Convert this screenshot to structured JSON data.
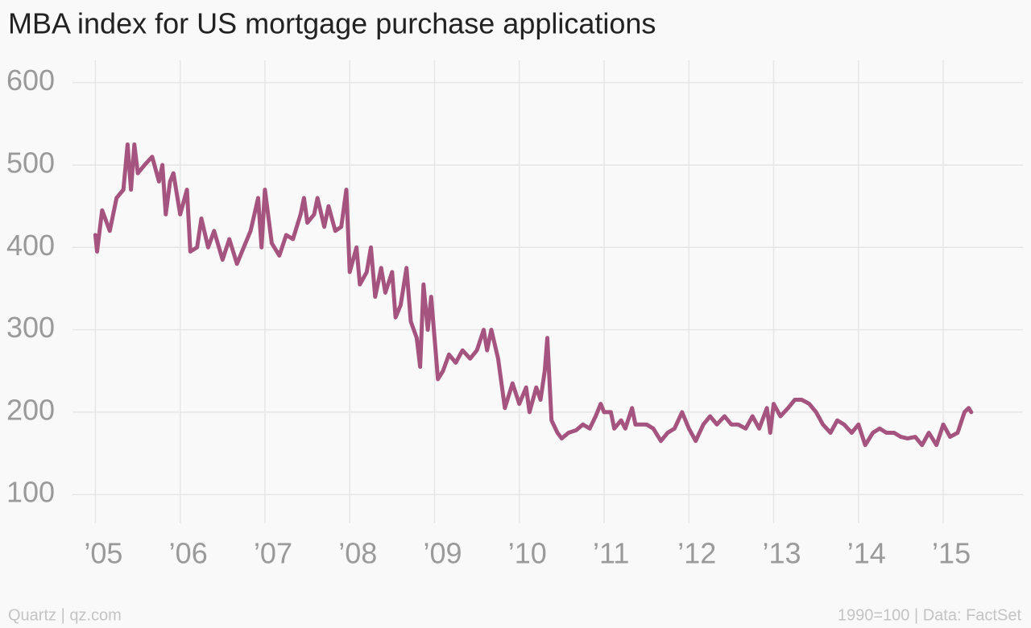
{
  "chart_data": {
    "type": "line",
    "title": "MBA index for US mortgage purchase applications",
    "source": "Quartz | qz.com",
    "note": "1990=100 | Data: FactSet",
    "color": "#a5547f",
    "grid": true,
    "xlim": [
      2004.73,
      2015.94
    ],
    "ylim": [
      65,
      627
    ],
    "xticks": [
      {
        "value": 2005,
        "label": "’05"
      },
      {
        "value": 2006,
        "label": "’06"
      },
      {
        "value": 2007,
        "label": "’07"
      },
      {
        "value": 2008,
        "label": "’08"
      },
      {
        "value": 2009,
        "label": "’09"
      },
      {
        "value": 2010,
        "label": "’10"
      },
      {
        "value": 2011,
        "label": "’11"
      },
      {
        "value": 2012,
        "label": "’12"
      },
      {
        "value": 2013,
        "label": "’13"
      },
      {
        "value": 2014,
        "label": "’14"
      },
      {
        "value": 2015,
        "label": "’15"
      }
    ],
    "yticks": [
      100,
      200,
      300,
      400,
      500,
      600
    ],
    "x": [
      2005.0,
      2005.02,
      2005.08,
      2005.17,
      2005.25,
      2005.33,
      2005.38,
      2005.42,
      2005.46,
      2005.5,
      2005.58,
      2005.67,
      2005.75,
      2005.79,
      2005.83,
      2005.88,
      2005.92,
      2006.0,
      2006.08,
      2006.12,
      2006.2,
      2006.25,
      2006.33,
      2006.4,
      2006.5,
      2006.58,
      2006.67,
      2006.75,
      2006.83,
      2006.92,
      2006.96,
      2007.0,
      2007.08,
      2007.17,
      2007.25,
      2007.33,
      2007.42,
      2007.46,
      2007.5,
      2007.58,
      2007.62,
      2007.7,
      2007.75,
      2007.83,
      2007.9,
      2007.96,
      2008.0,
      2008.08,
      2008.12,
      2008.2,
      2008.25,
      2008.3,
      2008.37,
      2008.42,
      2008.5,
      2008.54,
      2008.6,
      2008.67,
      2008.72,
      2008.79,
      2008.83,
      2008.87,
      2008.92,
      2008.96,
      2009.0,
      2009.04,
      2009.1,
      2009.17,
      2009.25,
      2009.33,
      2009.42,
      2009.5,
      2009.58,
      2009.62,
      2009.67,
      2009.75,
      2009.83,
      2009.92,
      2010.0,
      2010.08,
      2010.12,
      2010.2,
      2010.25,
      2010.3,
      2010.33,
      2010.38,
      2010.45,
      2010.5,
      2010.58,
      2010.67,
      2010.75,
      2010.83,
      2010.9,
      2010.96,
      2011.0,
      2011.08,
      2011.12,
      2011.2,
      2011.25,
      2011.33,
      2011.37,
      2011.5,
      2011.58,
      2011.67,
      2011.75,
      2011.83,
      2011.92,
      2012.0,
      2012.08,
      2012.17,
      2012.25,
      2012.33,
      2012.42,
      2012.5,
      2012.58,
      2012.67,
      2012.75,
      2012.83,
      2012.92,
      2012.96,
      2013.0,
      2013.08,
      2013.17,
      2013.25,
      2013.33,
      2013.42,
      2013.5,
      2013.58,
      2013.67,
      2013.75,
      2013.83,
      2013.92,
      2014.0,
      2014.08,
      2014.17,
      2014.25,
      2014.33,
      2014.42,
      2014.5,
      2014.58,
      2014.67,
      2014.75,
      2014.83,
      2014.92,
      2015.0,
      2015.08,
      2015.17,
      2015.25,
      2015.3,
      2015.33
    ],
    "values": [
      415,
      395,
      445,
      420,
      460,
      470,
      525,
      470,
      525,
      490,
      500,
      510,
      480,
      500,
      440,
      480,
      490,
      440,
      470,
      395,
      400,
      435,
      400,
      420,
      385,
      410,
      380,
      400,
      420,
      460,
      400,
      470,
      405,
      390,
      415,
      410,
      440,
      460,
      430,
      440,
      460,
      425,
      450,
      420,
      425,
      470,
      370,
      400,
      355,
      370,
      400,
      340,
      375,
      345,
      370,
      315,
      330,
      375,
      310,
      290,
      255,
      355,
      300,
      340,
      290,
      240,
      250,
      270,
      260,
      275,
      265,
      275,
      300,
      275,
      300,
      265,
      205,
      235,
      210,
      230,
      200,
      230,
      215,
      250,
      290,
      190,
      175,
      168,
      175,
      178,
      185,
      180,
      195,
      210,
      200,
      200,
      180,
      190,
      180,
      205,
      185,
      185,
      180,
      165,
      175,
      180,
      200,
      180,
      165,
      185,
      195,
      185,
      195,
      185,
      185,
      180,
      195,
      180,
      205,
      175,
      210,
      195,
      205,
      215,
      215,
      210,
      200,
      185,
      175,
      190,
      185,
      175,
      185,
      160,
      175,
      180,
      175,
      175,
      170,
      168,
      170,
      160,
      175,
      160,
      185,
      170,
      175,
      200,
      205,
      200
    ]
  }
}
